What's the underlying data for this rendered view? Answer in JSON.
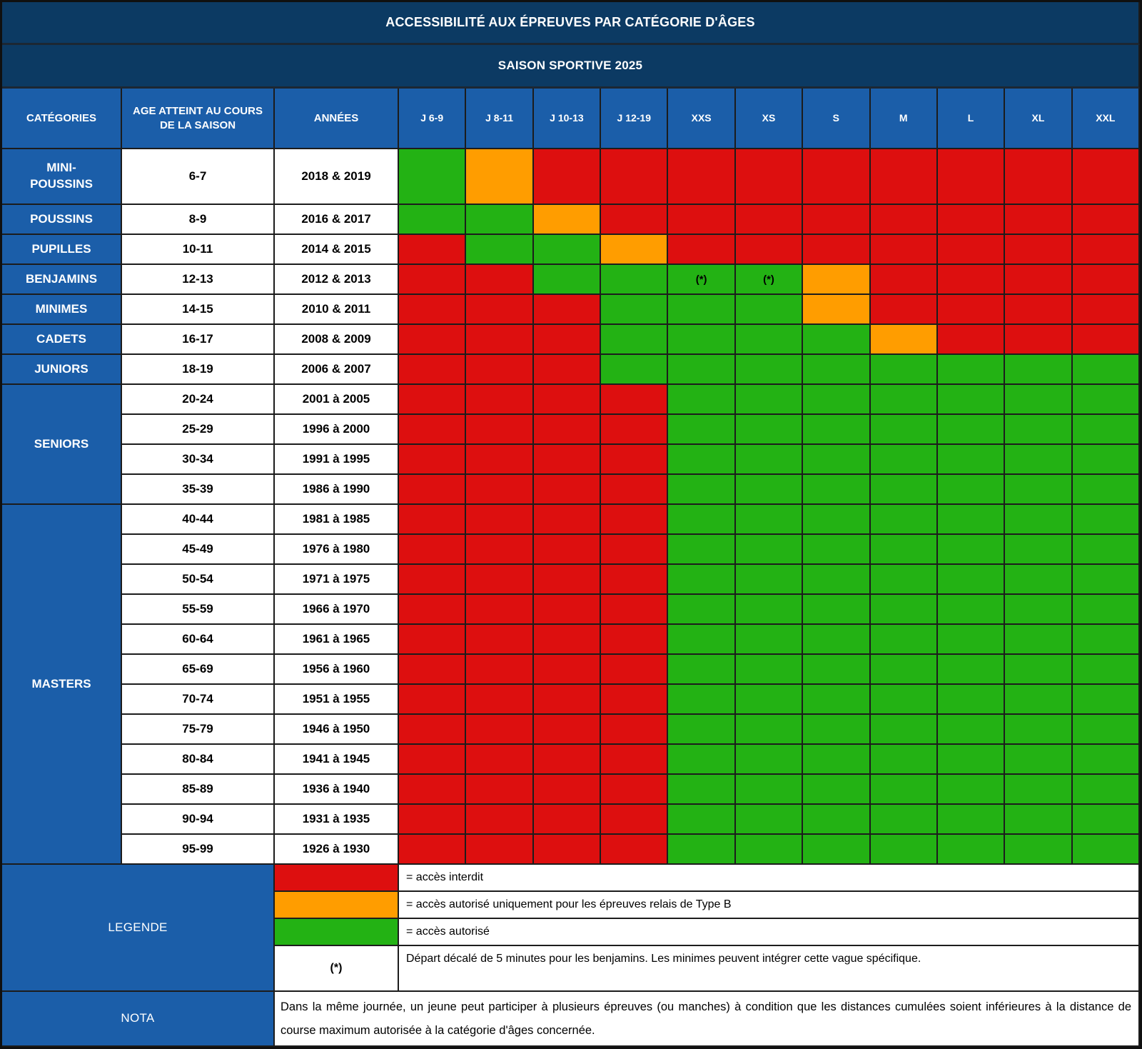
{
  "title": "ACCESSIBILITÉ AUX ÉPREUVES PAR CATÉGORIE D'ÂGES",
  "subtitle": "SAISON SPORTIVE 2025",
  "header": {
    "categories": "CATÉGORIES",
    "age": "AGE ATTEINT AU COURS DE LA SAISON",
    "years": "ANNÉES",
    "events": [
      "J 6-9",
      "J 8-11",
      "J 10-13",
      "J 12-19",
      "XXS",
      "XS",
      "S",
      "M",
      "L",
      "XL",
      "XXL"
    ]
  },
  "colors": {
    "red": "#DD0F0F",
    "orange": "#FF9D00",
    "green": "#23B214",
    "header_blue": "#1B5EA9",
    "title_navy": "#0C3A63"
  },
  "access_legend_codes": {
    "R": "accès interdit",
    "O": "accès relais Type B uniquement",
    "G": "accès autorisé"
  },
  "star_marker": "(*)",
  "groups": [
    {
      "label": "MINI-\nPOUSSINS",
      "rows": [
        {
          "age": "6-7",
          "years": "2018 & 2019",
          "access": [
            "G",
            "O",
            "R",
            "R",
            "R",
            "R",
            "R",
            "R",
            "R",
            "R",
            "R"
          ]
        }
      ]
    },
    {
      "label": "POUSSINS",
      "rows": [
        {
          "age": "8-9",
          "years": "2016 & 2017",
          "access": [
            "G",
            "G",
            "O",
            "R",
            "R",
            "R",
            "R",
            "R",
            "R",
            "R",
            "R"
          ]
        }
      ]
    },
    {
      "label": "PUPILLES",
      "rows": [
        {
          "age": "10-11",
          "years": "2014 & 2015",
          "access": [
            "R",
            "G",
            "G",
            "O",
            "R",
            "R",
            "R",
            "R",
            "R",
            "R",
            "R"
          ]
        }
      ]
    },
    {
      "label": "BENJAMINS",
      "rows": [
        {
          "age": "12-13",
          "years": "2012 & 2013",
          "access": [
            "R",
            "R",
            "G",
            "G",
            "G*",
            "G*",
            "O",
            "R",
            "R",
            "R",
            "R"
          ]
        }
      ]
    },
    {
      "label": "MINIMES",
      "rows": [
        {
          "age": "14-15",
          "years": "2010 & 2011",
          "access": [
            "R",
            "R",
            "R",
            "G",
            "G",
            "G",
            "O",
            "R",
            "R",
            "R",
            "R"
          ]
        }
      ]
    },
    {
      "label": "CADETS",
      "rows": [
        {
          "age": "16-17",
          "years": "2008 & 2009",
          "access": [
            "R",
            "R",
            "R",
            "G",
            "G",
            "G",
            "G",
            "O",
            "R",
            "R",
            "R"
          ]
        }
      ]
    },
    {
      "label": "JUNIORS",
      "rows": [
        {
          "age": "18-19",
          "years": "2006 & 2007",
          "access": [
            "R",
            "R",
            "R",
            "G",
            "G",
            "G",
            "G",
            "G",
            "G",
            "G",
            "G"
          ]
        }
      ]
    },
    {
      "label": "SENIORS",
      "rows": [
        {
          "age": "20-24",
          "years": "2001 à 2005",
          "access": [
            "R",
            "R",
            "R",
            "R",
            "G",
            "G",
            "G",
            "G",
            "G",
            "G",
            "G"
          ]
        },
        {
          "age": "25-29",
          "years": "1996 à 2000",
          "access": [
            "R",
            "R",
            "R",
            "R",
            "G",
            "G",
            "G",
            "G",
            "G",
            "G",
            "G"
          ]
        },
        {
          "age": "30-34",
          "years": "1991 à 1995",
          "access": [
            "R",
            "R",
            "R",
            "R",
            "G",
            "G",
            "G",
            "G",
            "G",
            "G",
            "G"
          ]
        },
        {
          "age": "35-39",
          "years": "1986 à 1990",
          "access": [
            "R",
            "R",
            "R",
            "R",
            "G",
            "G",
            "G",
            "G",
            "G",
            "G",
            "G"
          ]
        }
      ]
    },
    {
      "label": "MASTERS",
      "rows": [
        {
          "age": "40-44",
          "years": "1981 à 1985",
          "access": [
            "R",
            "R",
            "R",
            "R",
            "G",
            "G",
            "G",
            "G",
            "G",
            "G",
            "G"
          ]
        },
        {
          "age": "45-49",
          "years": "1976 à 1980",
          "access": [
            "R",
            "R",
            "R",
            "R",
            "G",
            "G",
            "G",
            "G",
            "G",
            "G",
            "G"
          ]
        },
        {
          "age": "50-54",
          "years": "1971 à 1975",
          "access": [
            "R",
            "R",
            "R",
            "R",
            "G",
            "G",
            "G",
            "G",
            "G",
            "G",
            "G"
          ]
        },
        {
          "age": "55-59",
          "years": "1966 à 1970",
          "access": [
            "R",
            "R",
            "R",
            "R",
            "G",
            "G",
            "G",
            "G",
            "G",
            "G",
            "G"
          ]
        },
        {
          "age": "60-64",
          "years": "1961 à 1965",
          "access": [
            "R",
            "R",
            "R",
            "R",
            "G",
            "G",
            "G",
            "G",
            "G",
            "G",
            "G"
          ]
        },
        {
          "age": "65-69",
          "years": "1956 à 1960",
          "access": [
            "R",
            "R",
            "R",
            "R",
            "G",
            "G",
            "G",
            "G",
            "G",
            "G",
            "G"
          ]
        },
        {
          "age": "70-74",
          "years": "1951 à 1955",
          "access": [
            "R",
            "R",
            "R",
            "R",
            "G",
            "G",
            "G",
            "G",
            "G",
            "G",
            "G"
          ]
        },
        {
          "age": "75-79",
          "years": "1946 à 1950",
          "access": [
            "R",
            "R",
            "R",
            "R",
            "G",
            "G",
            "G",
            "G",
            "G",
            "G",
            "G"
          ]
        },
        {
          "age": "80-84",
          "years": "1941 à 1945",
          "access": [
            "R",
            "R",
            "R",
            "R",
            "G",
            "G",
            "G",
            "G",
            "G",
            "G",
            "G"
          ]
        },
        {
          "age": "85-89",
          "years": "1936 à 1940",
          "access": [
            "R",
            "R",
            "R",
            "R",
            "G",
            "G",
            "G",
            "G",
            "G",
            "G",
            "G"
          ]
        },
        {
          "age": "90-94",
          "years": "1931 à 1935",
          "access": [
            "R",
            "R",
            "R",
            "R",
            "G",
            "G",
            "G",
            "G",
            "G",
            "G",
            "G"
          ]
        },
        {
          "age": "95-99",
          "years": "1926 à 1930",
          "access": [
            "R",
            "R",
            "R",
            "R",
            "G",
            "G",
            "G",
            "G",
            "G",
            "G",
            "G"
          ]
        }
      ]
    }
  ],
  "legend": {
    "label": "LEGENDE",
    "items": [
      {
        "code": "R",
        "text": "= accès interdit"
      },
      {
        "code": "O",
        "text": "= accès autorisé uniquement pour les épreuves relais de Type B"
      },
      {
        "code": "G",
        "text": "= accès autorisé"
      },
      {
        "code": "star",
        "swatch_text": "(*)",
        "text": "Départ décalé de 5 minutes pour les benjamins. Les minimes peuvent intégrer cette vague spécifique."
      }
    ]
  },
  "nota": {
    "label": "NOTA",
    "text": "Dans la même journée, un jeune peut participer à plusieurs épreuves (ou manches) à condition que les distances cumulées soient inférieures à la distance de course maximum autorisée à la catégorie d'âges concernée."
  }
}
